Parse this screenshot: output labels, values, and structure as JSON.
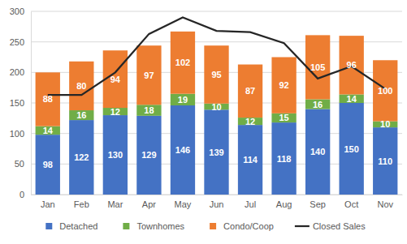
{
  "chart_data": {
    "type": "bar",
    "stacked": true,
    "legend": "bottom",
    "grid": true,
    "categories": [
      "Jan",
      "Feb",
      "Mar",
      "Apr",
      "May",
      "Jun",
      "Jul",
      "Aug",
      "Sep",
      "Oct",
      "Nov"
    ],
    "ylim": [
      0,
      300
    ],
    "yticks": [
      0,
      50,
      100,
      150,
      200,
      250,
      300
    ],
    "series": [
      {
        "name": "Detached",
        "type": "bar",
        "color": "#4472c4",
        "data_labels": true,
        "values": [
          98,
          122,
          130,
          129,
          146,
          139,
          114,
          118,
          140,
          150,
          110
        ]
      },
      {
        "name": "Townhomes",
        "type": "bar",
        "color": "#70ad47",
        "data_labels": true,
        "values": [
          14,
          16,
          12,
          18,
          19,
          10,
          12,
          15,
          16,
          14,
          10
        ]
      },
      {
        "name": "Condo/Coop",
        "type": "bar",
        "color": "#ed7d31",
        "data_labels": true,
        "values": [
          88,
          80,
          94,
          97,
          102,
          95,
          87,
          92,
          105,
          96,
          100
        ]
      },
      {
        "name": "Closed Sales",
        "type": "line",
        "color": "#262626",
        "line_style": "solid",
        "values": [
          163,
          163,
          200,
          263,
          290,
          268,
          266,
          248,
          190,
          210,
          173
        ]
      }
    ]
  }
}
